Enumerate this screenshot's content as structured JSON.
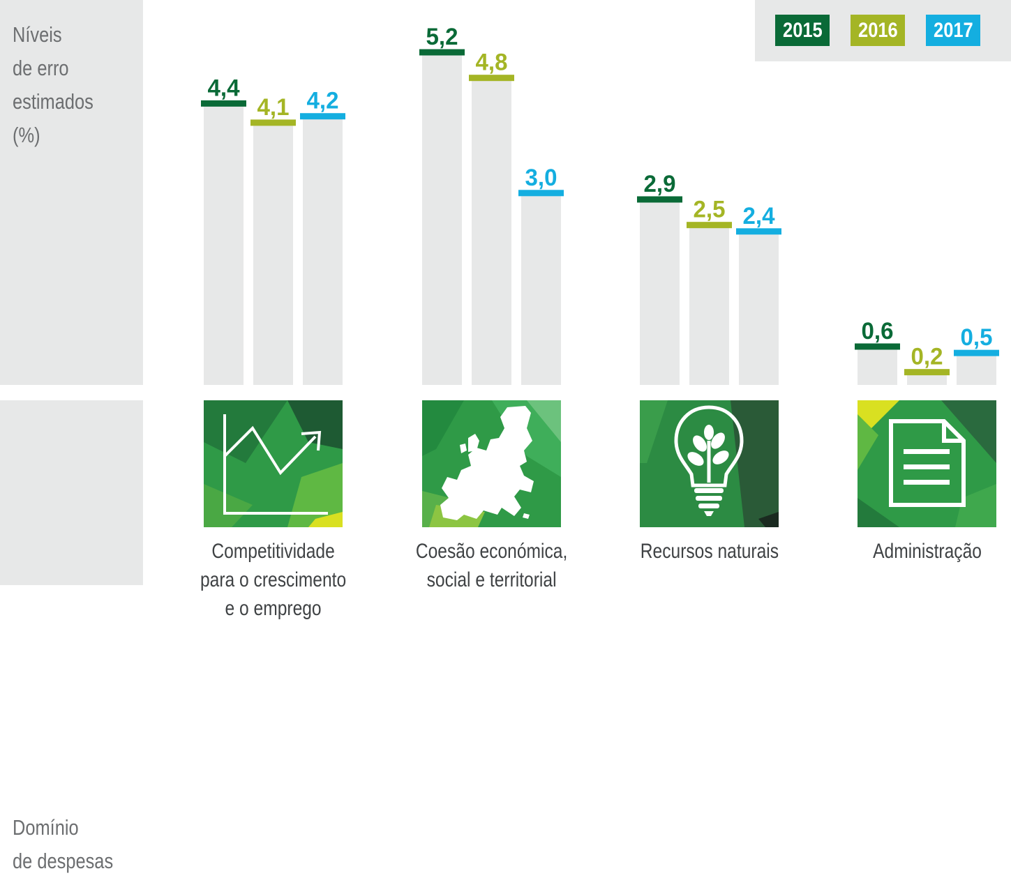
{
  "ylabel": "Níveis\nde erro\nestimados\n(%)",
  "domain_label": "Domínio\nde despesas",
  "colors": {
    "2015": "#0a6a37",
    "2016": "#a4b525",
    "2017": "#14aee0"
  },
  "icons": [
    "line-chart-icon",
    "europe-map-icon",
    "lightbulb-plant-icon",
    "document-icon"
  ],
  "chart_data": {
    "type": "bar",
    "categories": [
      "Competitividade\npara o crescimento\ne o emprego",
      "Coesão económica,\nsocial e territorial",
      "Recursos naturais",
      "Administração"
    ],
    "series": [
      {
        "name": "2015",
        "values": [
          4.4,
          5.2,
          2.9,
          0.6
        ],
        "labels": [
          "4,4",
          "5,2",
          "2,9",
          "0,6"
        ]
      },
      {
        "name": "2016",
        "values": [
          4.1,
          4.8,
          2.5,
          0.2
        ],
        "labels": [
          "4,1",
          "4,8",
          "2,5",
          "0,2"
        ]
      },
      {
        "name": "2017",
        "values": [
          4.2,
          3.0,
          2.4,
          0.5
        ],
        "labels": [
          "4,2",
          "3,0",
          "2,4",
          "0,5"
        ]
      }
    ],
    "ylim": [
      0,
      5.5
    ],
    "grid": false,
    "legend": "top-right"
  }
}
